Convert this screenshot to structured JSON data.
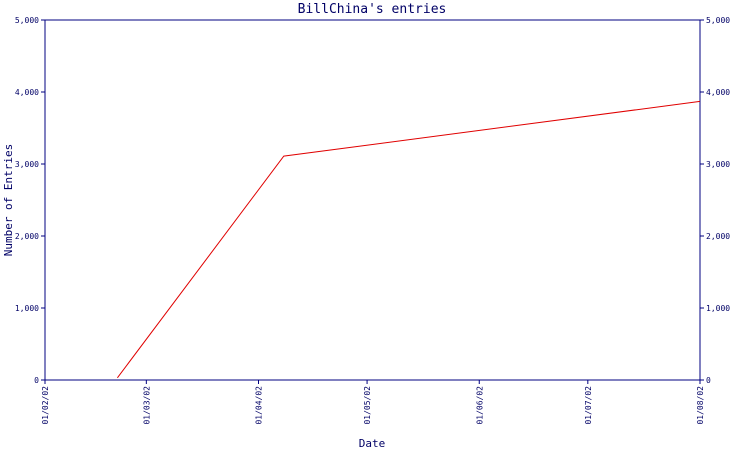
{
  "chart_data": {
    "type": "line",
    "title": "BillChina's entries",
    "xlabel": "Date",
    "ylabel": "Number of Entries",
    "x_ticks": [
      "01/02/02",
      "01/03/02",
      "01/04/02",
      "01/05/02",
      "01/06/02",
      "01/07/02",
      "01/08/02"
    ],
    "y_ticks": [
      "0",
      "1,000",
      "2,000",
      "3,000",
      "4,000",
      "5,000"
    ],
    "ylim": [
      0,
      5000
    ],
    "xlim": [
      "2002-02-01",
      "2002-08-01"
    ],
    "grid": false,
    "legend": "none",
    "series": [
      {
        "color": "#e00000",
        "points": [
          {
            "x": "2002-02-21",
            "y": 30
          },
          {
            "x": "2002-04-08",
            "y": 3110
          },
          {
            "x": "2002-08-01",
            "y": 3870
          }
        ]
      }
    ]
  },
  "colors": {
    "axis": "#000080",
    "text": "#000066",
    "line": "#e00000",
    "background": "#ffffff"
  }
}
